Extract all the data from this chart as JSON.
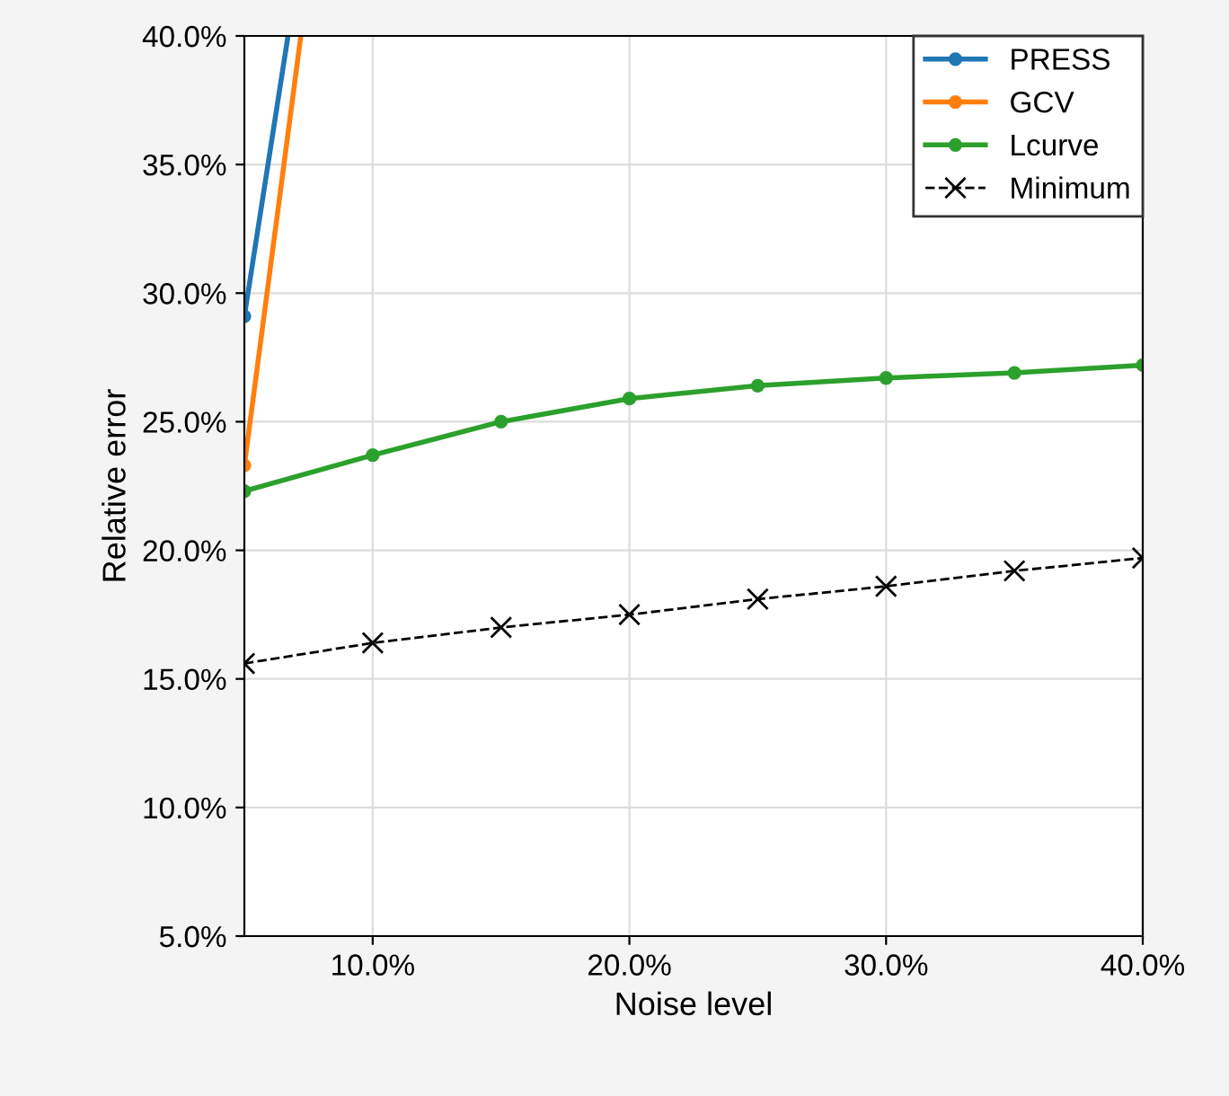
{
  "chart_data": {
    "type": "line",
    "xlabel": "Noise level",
    "ylabel": "Relative error",
    "x": [
      5,
      10,
      15,
      20,
      25,
      30,
      35,
      40
    ],
    "series": [
      {
        "name": "PRESS",
        "color": "#1f77b4",
        "x": [
          5,
          6.7
        ],
        "values": [
          29.1,
          40.0
        ],
        "marker": "circle",
        "line_style": "solid"
      },
      {
        "name": "GCV",
        "color": "#ff7f0e",
        "x": [
          5,
          7.2
        ],
        "values": [
          23.3,
          40.0
        ],
        "marker": "circle",
        "line_style": "solid"
      },
      {
        "name": "Lcurve",
        "color": "#2ca02c",
        "values": [
          22.3,
          23.7,
          25.0,
          25.9,
          26.4,
          26.7,
          26.9,
          27.2
        ],
        "marker": "circle",
        "line_style": "solid"
      },
      {
        "name": "Minimum",
        "color": "#000000",
        "values": [
          15.6,
          16.4,
          17.0,
          17.5,
          18.1,
          18.6,
          19.2,
          19.7
        ],
        "marker": "cross",
        "line_style": "dashed"
      }
    ],
    "xlim": [
      5,
      40
    ],
    "xticks": [
      {
        "value": 10,
        "label": "10.0%"
      },
      {
        "value": 20,
        "label": "20.0%"
      },
      {
        "value": 30,
        "label": "30.0%"
      },
      {
        "value": 40,
        "label": "40.0%"
      }
    ],
    "ylim": [
      5,
      40
    ],
    "yticks": [
      {
        "value": 5,
        "label": "5.0%"
      },
      {
        "value": 10,
        "label": "10.0%"
      },
      {
        "value": 15,
        "label": "15.0%"
      },
      {
        "value": 20,
        "label": "20.0%"
      },
      {
        "value": 25,
        "label": "25.0%"
      },
      {
        "value": 30,
        "label": "30.0%"
      },
      {
        "value": 35,
        "label": "35.0%"
      },
      {
        "value": 40,
        "label": "40.0%"
      }
    ],
    "grid": true,
    "legend": "top right"
  }
}
